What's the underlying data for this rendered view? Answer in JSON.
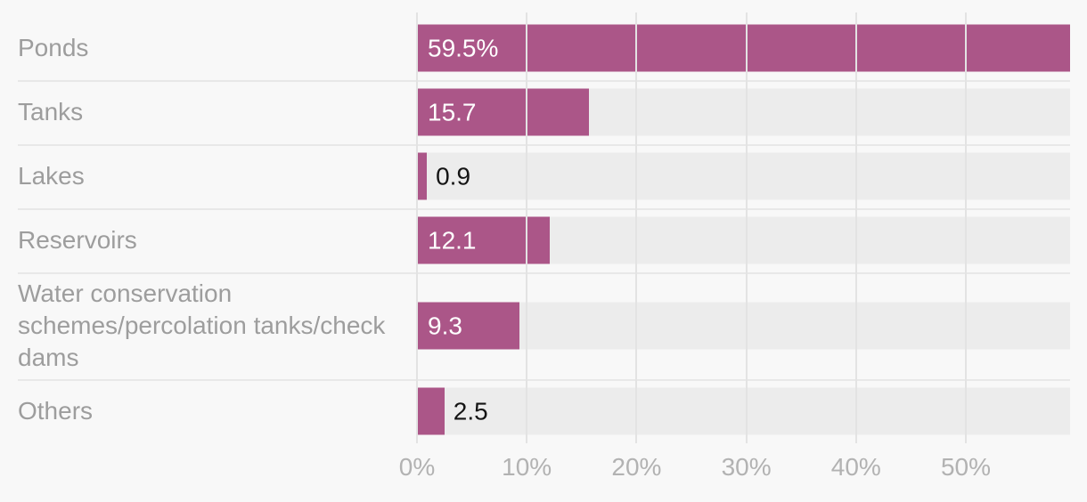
{
  "chart_data": {
    "type": "bar",
    "orientation": "horizontal",
    "title": "",
    "categories": [
      "Ponds",
      "Tanks",
      "Lakes",
      "Reservoirs",
      "Water conservation schemes/percolation tanks/check dams",
      "Others"
    ],
    "values": [
      59.5,
      15.7,
      0.9,
      12.1,
      9.3,
      2.5
    ],
    "value_labels": [
      "59.5%",
      "15.7",
      "0.9",
      "12.1",
      "9.3",
      "2.5"
    ],
    "x_tick_labels": [
      "0%",
      "10%",
      "20%",
      "30%",
      "40%",
      "50%"
    ],
    "x_tick_values": [
      0,
      10,
      20,
      30,
      40,
      50
    ],
    "xlim": [
      0,
      59.5
    ],
    "grid": "vertical-only",
    "legend": "none",
    "colors": {
      "bar": "#ab5688",
      "track": "#ececec",
      "background": "#f8f8f8",
      "gridline": "#e3e3e3",
      "separator": "#e8e8e8",
      "label": "#9d9d9d",
      "axis_label": "#b2b2b2",
      "value_inside": "#ffffff",
      "value_outside": "#141414"
    }
  }
}
